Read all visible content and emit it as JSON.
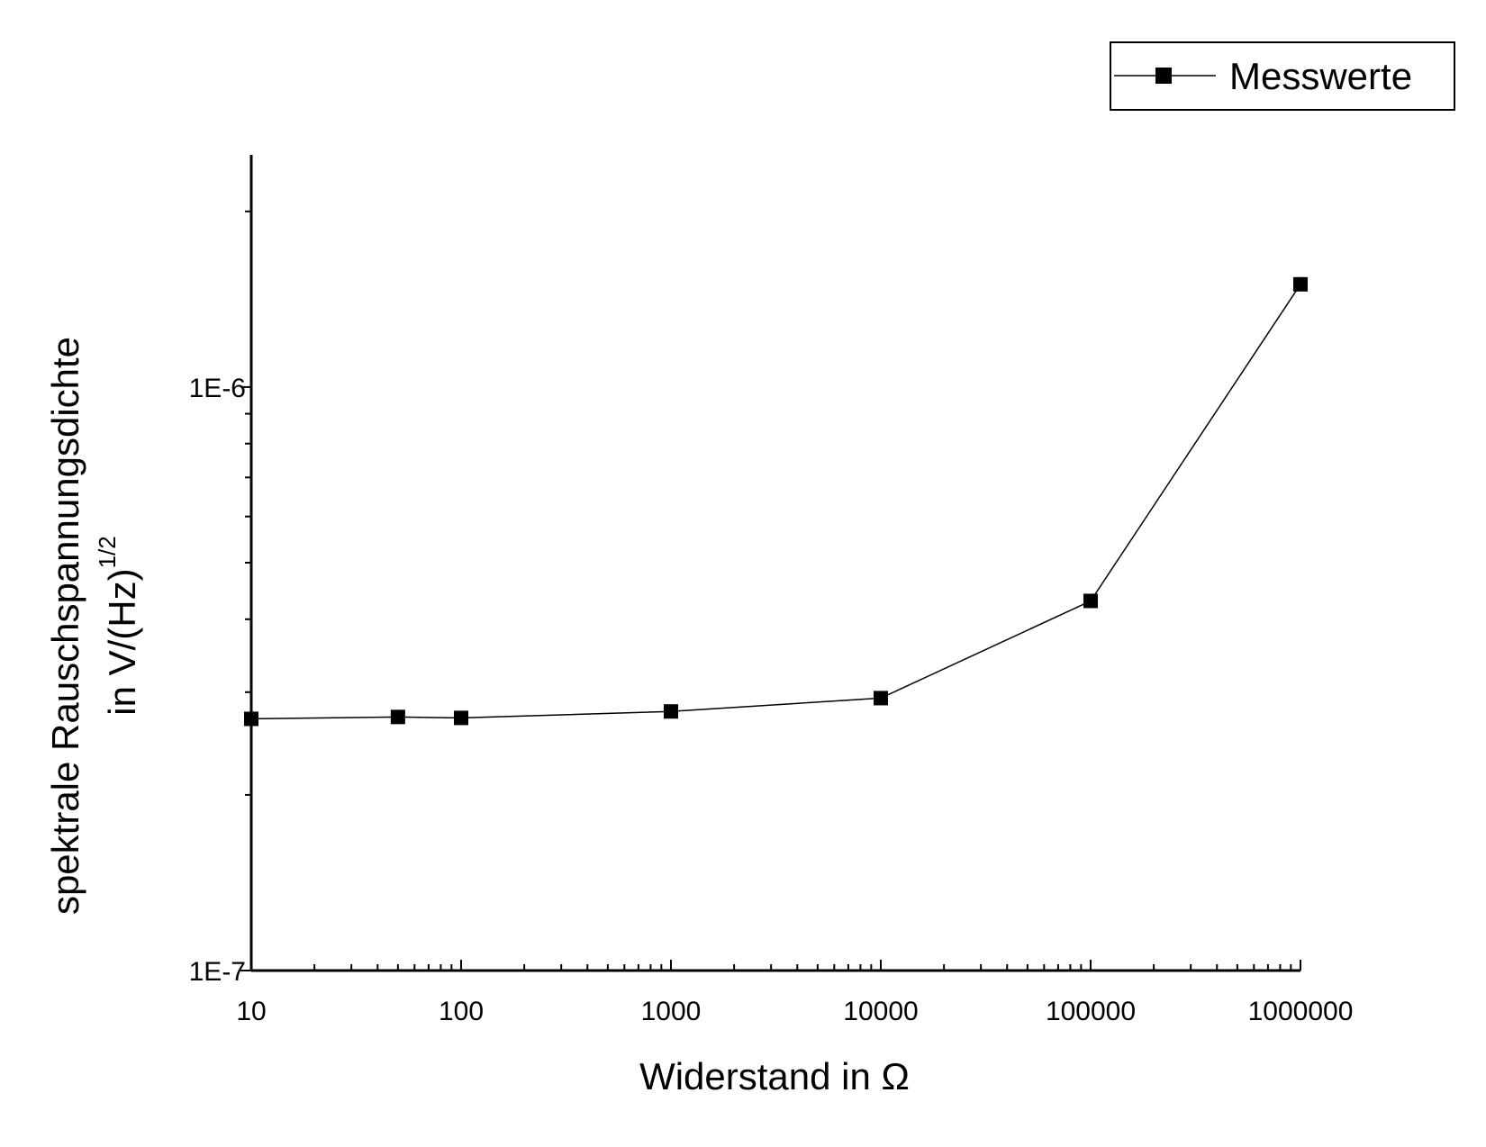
{
  "chart_data": {
    "type": "line",
    "x_scale": "log",
    "y_scale": "log",
    "xlim": [
      10,
      1000000
    ],
    "ylim": [
      1e-07,
      2.5e-06
    ],
    "x_ticks": [
      {
        "value": 10,
        "label": "10"
      },
      {
        "value": 100,
        "label": "100"
      },
      {
        "value": 1000,
        "label": "1000"
      },
      {
        "value": 10000,
        "label": "10000"
      },
      {
        "value": 100000,
        "label": "100000"
      },
      {
        "value": 1000000,
        "label": "1000000"
      }
    ],
    "y_ticks": [
      {
        "value": 1e-07,
        "label": "1E-7"
      },
      {
        "value": 1e-06,
        "label": "1E-6"
      }
    ],
    "xlabel": "Widerstand in Ω",
    "ylabel_line1": "spektrale Rauschspannungsdichte",
    "ylabel_line2": "in V/(Hz)",
    "ylabel_sup": "1/2",
    "grid": false,
    "legend_position": "top-right",
    "series": [
      {
        "name": "Messwerte",
        "color": "#000000",
        "marker": "square",
        "x": [
          10,
          50,
          100,
          1000,
          10000,
          100000,
          1000000
        ],
        "y": [
          2.7e-07,
          2.72e-07,
          2.71e-07,
          2.78e-07,
          2.93e-07,
          4.3e-07,
          1.5e-06
        ]
      }
    ]
  }
}
